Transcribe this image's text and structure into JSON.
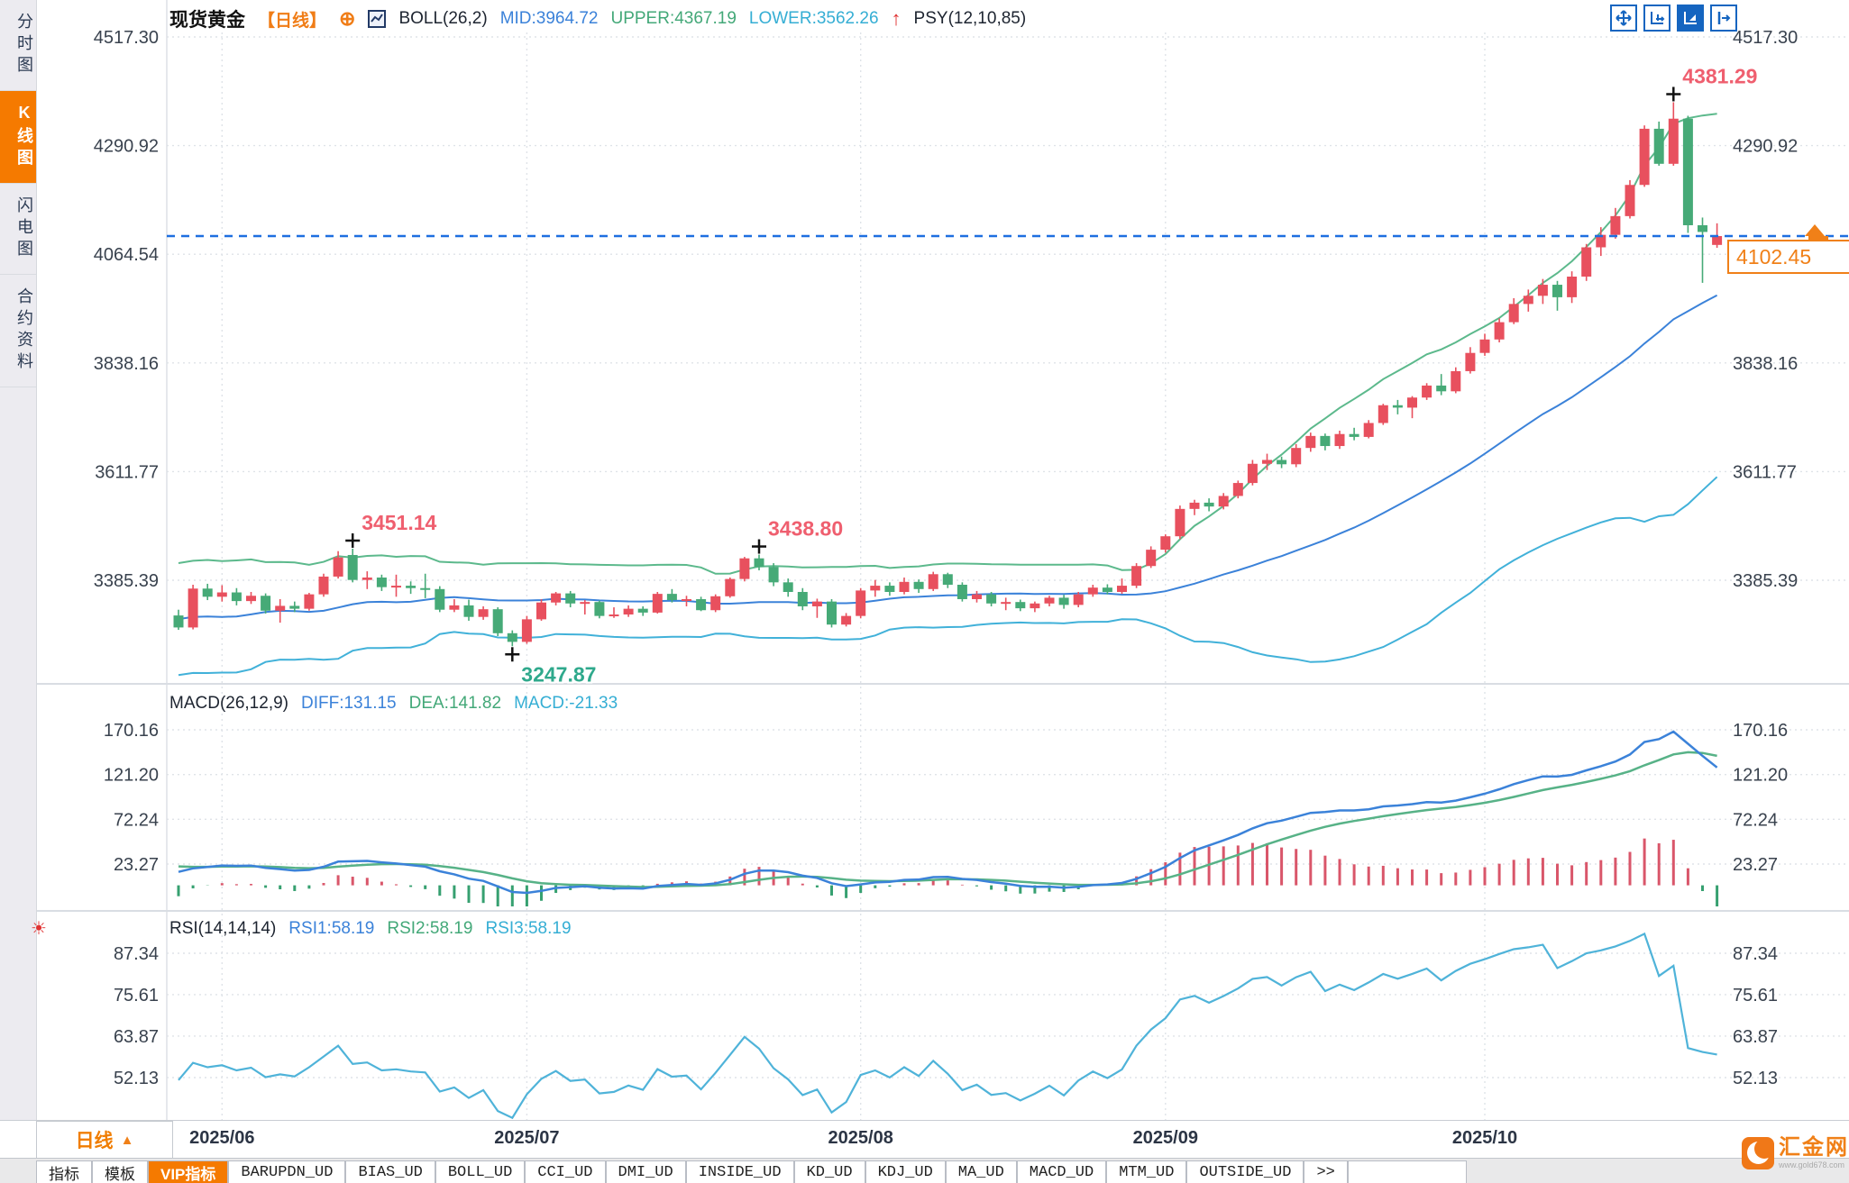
{
  "header": {
    "symbol": "现货黄金",
    "period_tag": "【日线】",
    "boll_label": "BOLL(26,2)",
    "boll_mid": "MID:3964.72",
    "boll_upper": "UPPER:4367.19",
    "boll_lower": "LOWER:3562.26",
    "psy_label": "PSY(12,10,85)"
  },
  "macd_header": {
    "label": "MACD(26,12,9)",
    "diff": "DIFF:131.15",
    "dea": "DEA:141.82",
    "macd": "MACD:-21.33"
  },
  "rsi_header": {
    "label": "RSI(14,14,14)",
    "rsi1": "RSI1:58.19",
    "rsi2": "RSI2:58.19",
    "rsi3": "RSI3:58.19"
  },
  "sidebar": {
    "items": [
      {
        "label": "分时图",
        "active": false
      },
      {
        "label": "K线图",
        "active": true
      },
      {
        "label": "闪电图",
        "active": false
      },
      {
        "label": "合约资料",
        "active": false
      }
    ]
  },
  "icons": {
    "expand_glyph": "⊕",
    "alert_arrow_glyph": "↑",
    "sun_glyph": "☀",
    "period_caret_glyph": "▲"
  },
  "period_selector": "日线",
  "price_label": "4102.45",
  "bottom_tabs": [
    {
      "label": "指标",
      "cn": true,
      "active": false
    },
    {
      "label": "模板",
      "cn": true,
      "active": false
    },
    {
      "label": "VIP指标",
      "cn": true,
      "active": true
    },
    {
      "label": "BARUPDN_UD",
      "cn": false,
      "active": false
    },
    {
      "label": "BIAS_UD",
      "cn": false,
      "active": false
    },
    {
      "label": "BOLL_UD",
      "cn": false,
      "active": false
    },
    {
      "label": "CCI_UD",
      "cn": false,
      "active": false
    },
    {
      "label": "DMI_UD",
      "cn": false,
      "active": false
    },
    {
      "label": "INSIDE_UD",
      "cn": false,
      "active": false
    },
    {
      "label": "KD_UD",
      "cn": false,
      "active": false
    },
    {
      "label": "KDJ_UD",
      "cn": false,
      "active": false
    },
    {
      "label": "MA_UD",
      "cn": false,
      "active": false
    },
    {
      "label": "MACD_UD",
      "cn": false,
      "active": false
    },
    {
      "label": "MTM_UD",
      "cn": false,
      "active": false
    },
    {
      "label": "OUTSIDE_UD",
      "cn": false,
      "active": false
    },
    {
      "label": ">>",
      "cn": false,
      "active": false
    }
  ],
  "logo": {
    "text": "汇金网",
    "url_text": "www.gold678.com"
  },
  "colors": {
    "up": "#e8505e",
    "down": "#46aa77",
    "boll_upper": "#5cb98c",
    "boll_mid": "#3b82d9",
    "boll_lower": "#41b1d9",
    "macd_diff": "#3b82d9",
    "macd_dea": "#57b287",
    "bar_up": "#d9566a",
    "bar_down": "#36a070",
    "rsi_line": "#4fb3d9",
    "dashed_line": "#1d6fe0",
    "high_label": "#ef5f6f",
    "low_label": "#2fa98c",
    "axis_text": "#39424e",
    "grid": "#dfe3e8",
    "accent_orange": "#f08018"
  },
  "chart_data": {
    "type": "candlestick",
    "title": "现货黄金 日线 (spot gold daily)",
    "legend": [
      "BOLL upper",
      "BOLL mid",
      "BOLL lower",
      "MACD DIFF",
      "MACD DEA",
      "RSI"
    ],
    "price_axis_ticks": [
      "4517.30",
      "4290.92",
      "4064.54",
      "3838.16",
      "3611.77",
      "3385.39"
    ],
    "macd_axis_ticks": [
      "170.16",
      "121.20",
      "72.24",
      "23.27"
    ],
    "rsi_axis_ticks": [
      "87.34",
      "75.61",
      "63.87",
      "52.13"
    ],
    "current_price": 4102.45,
    "month_labels": [
      {
        "label": "2025/06",
        "index": 3
      },
      {
        "label": "2025/07",
        "index": 24
      },
      {
        "label": "2025/08",
        "index": 47
      },
      {
        "label": "2025/09",
        "index": 68
      },
      {
        "label": "2025/10",
        "index": 90
      }
    ],
    "annotations": [
      {
        "index": 12,
        "type": "high",
        "value": 3451.14,
        "label": "3451.14"
      },
      {
        "index": 23,
        "type": "low",
        "value": 3247.87,
        "label": "3247.87"
      },
      {
        "index": 40,
        "type": "high",
        "value": 3438.8,
        "label": "3438.80"
      },
      {
        "index": 103,
        "type": "high",
        "value": 4381.29,
        "label": "4381.29"
      }
    ],
    "indicators": {
      "boll": [
        26,
        2
      ],
      "macd": [
        26,
        12,
        9
      ],
      "rsi": [
        14,
        14,
        14
      ],
      "psy": [
        12,
        10,
        85
      ]
    },
    "seed_closes": [
      3190,
      3250,
      3330,
      3380,
      3320,
      3240,
      3195,
      3265,
      3345,
      3395,
      3335,
      3255,
      3205,
      3275,
      3355,
      3400,
      3345,
      3265,
      3215,
      3295,
      3365,
      3390,
      3330,
      3260,
      3305,
      3315
    ],
    "candles": [
      [
        3312,
        3324,
        3282,
        3287
      ],
      [
        3287,
        3376,
        3283,
        3368
      ],
      [
        3368,
        3378,
        3344,
        3351
      ],
      [
        3351,
        3375,
        3341,
        3360
      ],
      [
        3360,
        3369,
        3333,
        3342
      ],
      [
        3342,
        3361,
        3336,
        3353
      ],
      [
        3353,
        3358,
        3316,
        3322
      ],
      [
        3322,
        3346,
        3297,
        3332
      ],
      [
        3332,
        3341,
        3319,
        3326
      ],
      [
        3326,
        3359,
        3322,
        3356
      ],
      [
        3356,
        3399,
        3351,
        3393
      ],
      [
        3393,
        3446,
        3389,
        3433
      ],
      [
        3438,
        3451.14,
        3381,
        3386
      ],
      [
        3386,
        3404,
        3367,
        3391
      ],
      [
        3391,
        3397,
        3363,
        3371
      ],
      [
        3371,
        3397,
        3351,
        3374
      ],
      [
        3374,
        3383,
        3357,
        3369
      ],
      [
        3369,
        3399,
        3348,
        3367
      ],
      [
        3367,
        3373,
        3319,
        3324
      ],
      [
        3324,
        3346,
        3319,
        3333
      ],
      [
        3333,
        3345,
        3301,
        3309
      ],
      [
        3309,
        3331,
        3303,
        3325
      ],
      [
        3325,
        3329,
        3269,
        3275
      ],
      [
        3275,
        3281,
        3247.87,
        3257
      ],
      [
        3257,
        3311,
        3253,
        3304
      ],
      [
        3304,
        3346,
        3301,
        3339
      ],
      [
        3339,
        3361,
        3333,
        3358
      ],
      [
        3358,
        3363,
        3329,
        3337
      ],
      [
        3337,
        3344,
        3314,
        3340
      ],
      [
        3340,
        3343,
        3306,
        3311
      ],
      [
        3311,
        3329,
        3307,
        3314
      ],
      [
        3314,
        3333,
        3309,
        3326
      ],
      [
        3326,
        3331,
        3311,
        3318
      ],
      [
        3318,
        3361,
        3316,
        3357
      ],
      [
        3357,
        3367,
        3339,
        3344
      ],
      [
        3344,
        3353,
        3331,
        3346
      ],
      [
        3346,
        3351,
        3321,
        3323
      ],
      [
        3323,
        3356,
        3319,
        3352
      ],
      [
        3352,
        3391,
        3349,
        3388
      ],
      [
        3388,
        3434,
        3383,
        3431
      ],
      [
        3431,
        3438.8,
        3406,
        3413
      ],
      [
        3413,
        3421,
        3373,
        3381
      ],
      [
        3381,
        3389,
        3351,
        3361
      ],
      [
        3361,
        3369,
        3323,
        3331
      ],
      [
        3331,
        3347,
        3307,
        3341
      ],
      [
        3341,
        3346,
        3287,
        3293
      ],
      [
        3293,
        3317,
        3289,
        3311
      ],
      [
        3311,
        3369,
        3306,
        3364
      ],
      [
        3364,
        3386,
        3351,
        3374
      ],
      [
        3374,
        3381,
        3353,
        3361
      ],
      [
        3361,
        3391,
        3356,
        3382
      ],
      [
        3382,
        3387,
        3359,
        3367
      ],
      [
        3367,
        3403,
        3363,
        3398
      ],
      [
        3398,
        3401,
        3369,
        3376
      ],
      [
        3376,
        3381,
        3341,
        3346
      ],
      [
        3346,
        3363,
        3339,
        3356
      ],
      [
        3356,
        3361,
        3331,
        3337
      ],
      [
        3337,
        3349,
        3323,
        3340
      ],
      [
        3340,
        3345,
        3321,
        3327
      ],
      [
        3327,
        3341,
        3319,
        3337
      ],
      [
        3337,
        3353,
        3331,
        3349
      ],
      [
        3349,
        3355,
        3326,
        3334
      ],
      [
        3334,
        3361,
        3329,
        3356
      ],
      [
        3356,
        3376,
        3351,
        3370
      ],
      [
        3370,
        3377,
        3356,
        3361
      ],
      [
        3361,
        3389,
        3357,
        3374
      ],
      [
        3374,
        3421,
        3369,
        3415
      ],
      [
        3415,
        3456,
        3411,
        3449
      ],
      [
        3449,
        3481,
        3443,
        3477
      ],
      [
        3477,
        3541,
        3471,
        3534
      ],
      [
        3534,
        3553,
        3521,
        3547
      ],
      [
        3547,
        3556,
        3529,
        3539
      ],
      [
        3539,
        3567,
        3533,
        3561
      ],
      [
        3561,
        3593,
        3556,
        3588
      ],
      [
        3588,
        3636,
        3583,
        3628
      ],
      [
        3628,
        3649,
        3615,
        3636
      ],
      [
        3636,
        3643,
        3619,
        3627
      ],
      [
        3627,
        3669,
        3621,
        3661
      ],
      [
        3661,
        3693,
        3653,
        3686
      ],
      [
        3686,
        3691,
        3656,
        3665
      ],
      [
        3665,
        3697,
        3659,
        3690
      ],
      [
        3690,
        3703,
        3677,
        3684
      ],
      [
        3684,
        3719,
        3681,
        3713
      ],
      [
        3713,
        3753,
        3709,
        3750
      ],
      [
        3750,
        3761,
        3731,
        3745
      ],
      [
        3745,
        3769,
        3723,
        3766
      ],
      [
        3766,
        3796,
        3761,
        3791
      ],
      [
        3791,
        3815,
        3771,
        3779
      ],
      [
        3779,
        3829,
        3775,
        3821
      ],
      [
        3821,
        3871,
        3816,
        3859
      ],
      [
        3859,
        3899,
        3853,
        3887
      ],
      [
        3887,
        3931,
        3881,
        3923
      ],
      [
        3923,
        3973,
        3919,
        3961
      ],
      [
        3961,
        3991,
        3945,
        3978
      ],
      [
        3978,
        4013,
        3961,
        4001
      ],
      [
        4001,
        4009,
        3947,
        3975
      ],
      [
        3975,
        4029,
        3963,
        4018
      ],
      [
        4018,
        4086,
        4009,
        4079
      ],
      [
        4079,
        4121,
        4061,
        4105
      ],
      [
        4105,
        4161,
        4097,
        4144
      ],
      [
        4144,
        4219,
        4139,
        4209
      ],
      [
        4209,
        4333,
        4205,
        4326
      ],
      [
        4326,
        4341,
        4249,
        4253
      ],
      [
        4253,
        4381.29,
        4249,
        4347
      ],
      [
        4347,
        4353,
        4109,
        4125
      ],
      [
        4125,
        4141,
        4005,
        4111
      ],
      [
        4084,
        4129,
        4078,
        4102.45
      ]
    ]
  }
}
